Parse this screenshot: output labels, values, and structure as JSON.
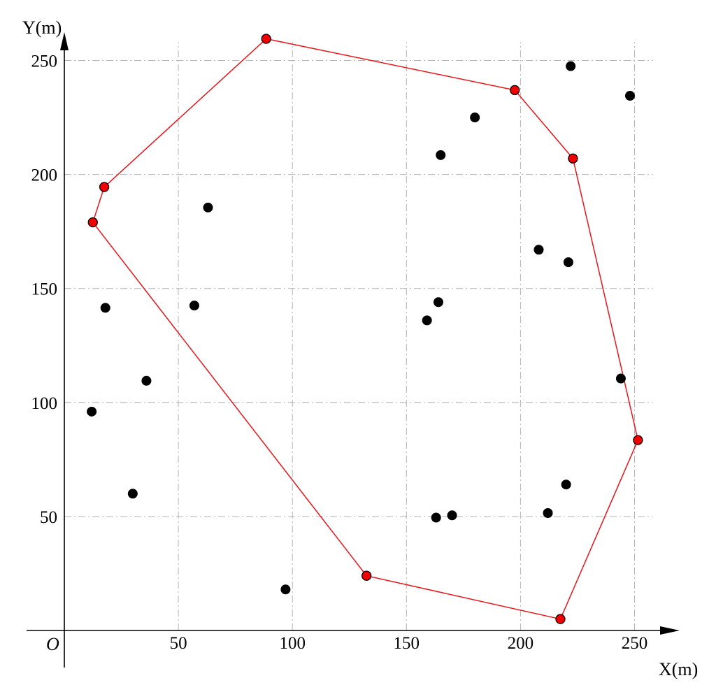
{
  "chart_data": {
    "type": "scatter",
    "title": "",
    "xlabel": "X(m)",
    "ylabel": "Y(m)",
    "origin_label": "O",
    "xlim": [
      0,
      262
    ],
    "ylim": [
      0,
      262
    ],
    "x_ticks": [
      50,
      100,
      150,
      200,
      250
    ],
    "y_ticks": [
      50,
      100,
      150,
      200,
      250
    ],
    "grid": true,
    "grid_style": "dash-dot, light gray",
    "legend": "none",
    "colors": {
      "points": "#000000",
      "hull": "#e8151b",
      "hull_vertex_fill": "#f00000"
    },
    "series": [
      {
        "role": "points",
        "points": [
          [
            63,
            185.5
          ],
          [
            57,
            142.5
          ],
          [
            18,
            141.5
          ],
          [
            36,
            109.5
          ],
          [
            12,
            96
          ],
          [
            30,
            60
          ],
          [
            97,
            18
          ],
          [
            165,
            208.5
          ],
          [
            180,
            225
          ],
          [
            164,
            144
          ],
          [
            159,
            136
          ],
          [
            163,
            49.5
          ],
          [
            170,
            50.5
          ],
          [
            208,
            167
          ],
          [
            221,
            161.5
          ],
          [
            222,
            247.5
          ],
          [
            248,
            234.5
          ],
          [
            244,
            110.5
          ],
          [
            220,
            64
          ],
          [
            212,
            51.5
          ]
        ]
      },
      {
        "role": "hull",
        "closed": true,
        "points": [
          [
            88.5,
            259.5
          ],
          [
            197.5,
            237
          ],
          [
            223,
            207
          ],
          [
            251.5,
            83.5
          ],
          [
            217.5,
            5
          ],
          [
            132.5,
            24
          ],
          [
            12.5,
            179
          ],
          [
            17.5,
            194.5
          ]
        ]
      }
    ]
  }
}
